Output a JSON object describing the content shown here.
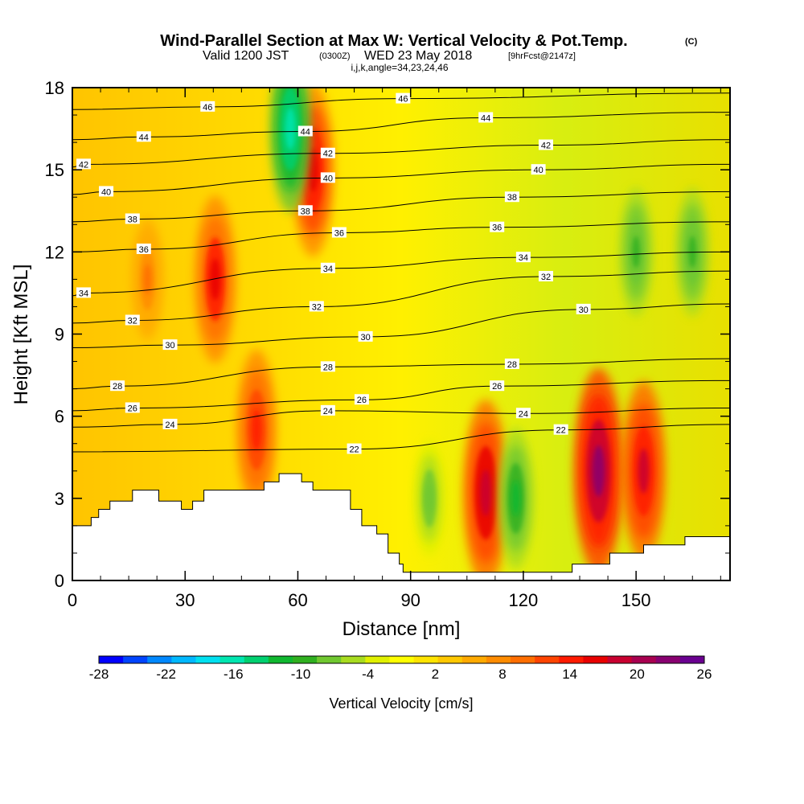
{
  "chart_data": {
    "type": "heatmap",
    "title": "Wind-Parallel Section at Max W: Vertical Velocity & Pot.Temp.",
    "title_mark": "(C)",
    "subtitle_prefix": "Valid 1200 JST",
    "subtitle_utc": "(0300Z)",
    "subtitle_date": "WED 23 May 2018",
    "subtitle_fcst": "[9hrFcst@2147z]",
    "subtitle_line3": "i,j,k,angle=34,23,24,46",
    "xlabel": "Distance [nm]",
    "ylabel": "Height [Kft MSL]",
    "xlim": [
      0,
      175
    ],
    "ylim": [
      0,
      18
    ],
    "x_ticks": [
      0,
      30,
      60,
      90,
      120,
      150
    ],
    "y_ticks": [
      0,
      3,
      6,
      9,
      12,
      15,
      18
    ],
    "colorbar": {
      "title": "Vertical Velocity [cm/s]",
      "tick_labels": [
        "-28",
        "-22",
        "-16",
        "-10",
        "-4",
        "2",
        "8",
        "14",
        "20",
        "26"
      ],
      "tick_values": [
        -28,
        -22,
        -16,
        -10,
        -4,
        2,
        8,
        14,
        20,
        26
      ],
      "colors": [
        "#0000ff",
        "#0044ff",
        "#0088ff",
        "#00b8ff",
        "#00e0f0",
        "#00e6b0",
        "#00d070",
        "#10b830",
        "#30b020",
        "#70c830",
        "#a8dc20",
        "#e0f000",
        "#ffff00",
        "#ffe400",
        "#ffc800",
        "#ffaa00",
        "#ff8c00",
        "#ff6e00",
        "#ff4400",
        "#ff1a00",
        "#e80000",
        "#c80030",
        "#a80050",
        "#880070",
        "#6a0090"
      ]
    },
    "series": [
      {
        "name": "Vertical Velocity",
        "units": "cm/s",
        "cells": [
          {
            "x": 20,
            "z": 11,
            "w": 9
          },
          {
            "x": 38,
            "z": 11,
            "w": 16
          },
          {
            "x": 49,
            "z": 5.5,
            "w": 15
          },
          {
            "x": 64,
            "z": 15,
            "w": 17
          },
          {
            "x": 58,
            "z": 16.5,
            "w": -16
          },
          {
            "x": 110,
            "z": 3.2,
            "w": 19
          },
          {
            "x": 140,
            "z": 4,
            "w": 22
          },
          {
            "x": 152,
            "z": 4,
            "w": 18
          },
          {
            "x": 118,
            "z": 3,
            "w": -12
          },
          {
            "x": 150,
            "z": 12,
            "w": -10
          },
          {
            "x": 95,
            "z": 3,
            "w": -8
          },
          {
            "x": 165,
            "z": 12,
            "w": -10
          }
        ]
      },
      {
        "name": "Potential Temperature",
        "units": "C",
        "contour_labels": [
          {
            "x": 36,
            "z": 17.3,
            "value": "46"
          },
          {
            "x": 88,
            "z": 17.6,
            "value": "46"
          },
          {
            "x": 19,
            "z": 16.2,
            "value": "44"
          },
          {
            "x": 62,
            "z": 16.4,
            "value": "44"
          },
          {
            "x": 110,
            "z": 16.9,
            "value": "44"
          },
          {
            "x": 68,
            "z": 15.6,
            "value": "42"
          },
          {
            "x": 126,
            "z": 15.9,
            "value": "42"
          },
          {
            "x": 3,
            "z": 15.2,
            "value": "42"
          },
          {
            "x": 68,
            "z": 14.7,
            "value": "40"
          },
          {
            "x": 124,
            "z": 15.0,
            "value": "40"
          },
          {
            "x": 9,
            "z": 14.2,
            "value": "40"
          },
          {
            "x": 16,
            "z": 13.2,
            "value": "38"
          },
          {
            "x": 62,
            "z": 13.5,
            "value": "38"
          },
          {
            "x": 117,
            "z": 14.0,
            "value": "38"
          },
          {
            "x": 19,
            "z": 12.1,
            "value": "36"
          },
          {
            "x": 71,
            "z": 12.7,
            "value": "36"
          },
          {
            "x": 113,
            "z": 12.9,
            "value": "36"
          },
          {
            "x": 3,
            "z": 10.5,
            "value": "34"
          },
          {
            "x": 68,
            "z": 11.4,
            "value": "34"
          },
          {
            "x": 120,
            "z": 11.8,
            "value": "34"
          },
          {
            "x": 16,
            "z": 9.5,
            "value": "32"
          },
          {
            "x": 65,
            "z": 10.0,
            "value": "32"
          },
          {
            "x": 126,
            "z": 11.1,
            "value": "32"
          },
          {
            "x": 26,
            "z": 8.6,
            "value": "30"
          },
          {
            "x": 78,
            "z": 8.9,
            "value": "30"
          },
          {
            "x": 136,
            "z": 9.9,
            "value": "30"
          },
          {
            "x": 12,
            "z": 7.1,
            "value": "28"
          },
          {
            "x": 68,
            "z": 7.8,
            "value": "28"
          },
          {
            "x": 117,
            "z": 7.9,
            "value": "28"
          },
          {
            "x": 16,
            "z": 6.3,
            "value": "26"
          },
          {
            "x": 77,
            "z": 6.6,
            "value": "26"
          },
          {
            "x": 113,
            "z": 7.1,
            "value": "26"
          },
          {
            "x": 26,
            "z": 5.7,
            "value": "24"
          },
          {
            "x": 68,
            "z": 6.2,
            "value": "24"
          },
          {
            "x": 120,
            "z": 6.1,
            "value": "24"
          },
          {
            "x": 75,
            "z": 4.8,
            "value": "22"
          },
          {
            "x": 130,
            "z": 5.5,
            "value": "22"
          }
        ]
      }
    ],
    "terrain": [
      [
        0,
        2
      ],
      [
        5,
        2
      ],
      [
        5,
        2.3
      ],
      [
        7,
        2.3
      ],
      [
        7,
        2.6
      ],
      [
        10,
        2.6
      ],
      [
        10,
        2.9
      ],
      [
        16,
        2.9
      ],
      [
        16,
        3.3
      ],
      [
        23,
        3.3
      ],
      [
        23,
        2.9
      ],
      [
        29,
        2.9
      ],
      [
        29,
        2.6
      ],
      [
        32,
        2.6
      ],
      [
        32,
        2.9
      ],
      [
        35,
        2.9
      ],
      [
        35,
        3.3
      ],
      [
        51,
        3.3
      ],
      [
        51,
        3.6
      ],
      [
        55,
        3.6
      ],
      [
        55,
        3.9
      ],
      [
        61,
        3.9
      ],
      [
        61,
        3.6
      ],
      [
        64,
        3.6
      ],
      [
        64,
        3.3
      ],
      [
        74,
        3.3
      ],
      [
        74,
        2.6
      ],
      [
        77,
        2.6
      ],
      [
        77,
        2
      ],
      [
        81,
        2
      ],
      [
        81,
        1.7
      ],
      [
        84,
        1.7
      ],
      [
        84,
        1
      ],
      [
        87,
        1
      ],
      [
        87,
        0.6
      ],
      [
        88,
        0.6
      ],
      [
        88,
        0.3
      ],
      [
        133,
        0.3
      ],
      [
        133,
        0.6
      ],
      [
        143,
        0.6
      ],
      [
        143,
        1
      ],
      [
        152,
        1
      ],
      [
        152,
        1.3
      ],
      [
        163,
        1.3
      ],
      [
        163,
        1.6
      ],
      [
        175,
        1.6
      ]
    ]
  }
}
